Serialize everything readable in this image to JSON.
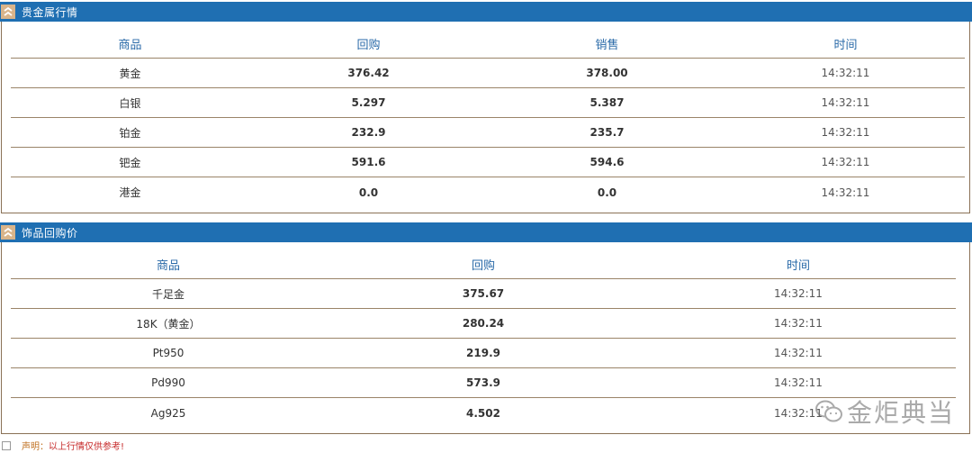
{
  "section1": {
    "title": "贵金属行情",
    "columns": [
      "商品",
      "回购",
      "销售",
      "时间"
    ],
    "rows": [
      {
        "name": "黄金",
        "buyback": "376.42",
        "sale": "378.00",
        "time": "14:32:11"
      },
      {
        "name": "白银",
        "buyback": "5.297",
        "sale": "5.387",
        "time": "14:32:11"
      },
      {
        "name": "铂金",
        "buyback": "232.9",
        "sale": "235.7",
        "time": "14:32:11"
      },
      {
        "name": "钯金",
        "buyback": "591.6",
        "sale": "594.6",
        "time": "14:32:11"
      },
      {
        "name": "港金",
        "buyback": "0.0",
        "sale": "0.0",
        "time": "14:32:11"
      }
    ]
  },
  "section2": {
    "title": "饰品回购价",
    "columns": [
      "商品",
      "回购",
      "时间"
    ],
    "rows": [
      {
        "name": "千足金",
        "buyback": "375.67",
        "time": "14:32:11"
      },
      {
        "name": "18K（黄金）",
        "buyback": "280.24",
        "time": "14:32:11"
      },
      {
        "name": "Pt950",
        "buyback": "219.9",
        "time": "14:32:11"
      },
      {
        "name": "Pd990",
        "buyback": "573.9",
        "time": "14:32:11"
      },
      {
        "name": "Ag925",
        "buyback": "4.502",
        "time": "14:32:11"
      }
    ]
  },
  "footer": {
    "label": "声明：",
    "text": "以上行情仅供参考!"
  },
  "watermark": {
    "text": "金炬典当",
    "icon": "wechat-icon"
  },
  "colors": {
    "header_bg": "#1f6fb2",
    "border": "#8a7156",
    "head_text": "#2a6aa8"
  }
}
